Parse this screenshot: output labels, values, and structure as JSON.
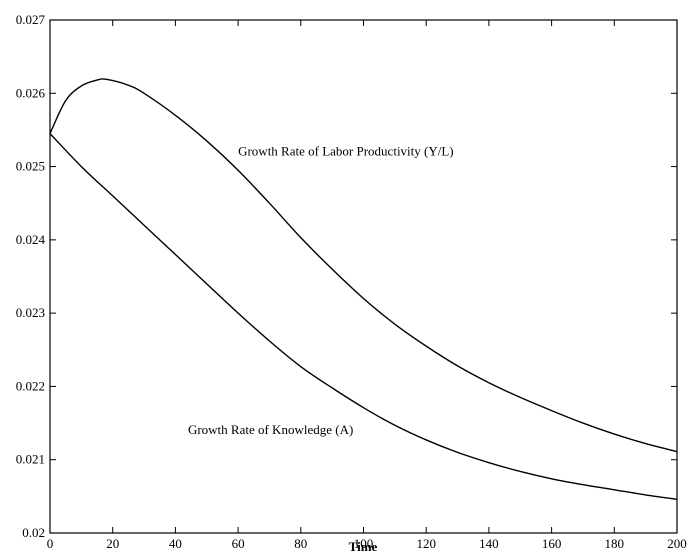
{
  "chart_data": {
    "type": "line",
    "title": "",
    "xlabel": "Time",
    "ylabel": "",
    "xlim": [
      0,
      200
    ],
    "ylim": [
      0.02,
      0.027
    ],
    "grid": false,
    "x_ticks": [
      0,
      20,
      40,
      60,
      80,
      100,
      120,
      140,
      160,
      180,
      200
    ],
    "y_ticks": [
      0.02,
      0.021,
      0.022,
      0.023,
      0.024,
      0.025,
      0.026,
      0.027
    ],
    "x_tick_labels": [
      "0",
      "20",
      "40",
      "60",
      "80",
      "100",
      "120",
      "140",
      "160",
      "180",
      "200"
    ],
    "y_tick_labels": [
      "0.02",
      "0.021",
      "0.022",
      "0.023",
      "0.024",
      "0.025",
      "0.026",
      "0.027"
    ],
    "series": [
      {
        "name": "Growth Rate of Labor Productivity (Y/L)",
        "x": [
          0,
          5,
          10,
          15,
          18,
          25,
          30,
          40,
          50,
          60,
          70,
          80,
          90,
          100,
          110,
          120,
          130,
          140,
          150,
          160,
          170,
          180,
          190,
          200
        ],
        "y": [
          0.02545,
          0.0259,
          0.0261,
          0.02618,
          0.02619,
          0.02611,
          0.026,
          0.0257,
          0.02535,
          0.02495,
          0.0245,
          0.02403,
          0.0236,
          0.0232,
          0.02285,
          0.02255,
          0.02228,
          0.02205,
          0.02185,
          0.02167,
          0.0215,
          0.02135,
          0.02122,
          0.02111
        ]
      },
      {
        "name": "Growth Rate of Knowledge (A)",
        "x": [
          0,
          10,
          20,
          30,
          40,
          50,
          60,
          70,
          80,
          90,
          100,
          110,
          120,
          130,
          140,
          150,
          160,
          170,
          180,
          190,
          200
        ],
        "y": [
          0.02545,
          0.025,
          0.0246,
          0.0242,
          0.0238,
          0.0234,
          0.023,
          0.02262,
          0.02227,
          0.02198,
          0.02171,
          0.02147,
          0.02127,
          0.0211,
          0.02096,
          0.02084,
          0.02074,
          0.02066,
          0.02059,
          0.02052,
          0.02046
        ]
      }
    ],
    "annotations": [
      {
        "text": "Growth Rate of Labor Productivity (Y/L)",
        "x": 60,
        "y": 0.02515,
        "series": 0
      },
      {
        "text": "Growth Rate of Knowledge (A)",
        "x": 44,
        "y": 0.02135,
        "series": 1
      }
    ]
  }
}
